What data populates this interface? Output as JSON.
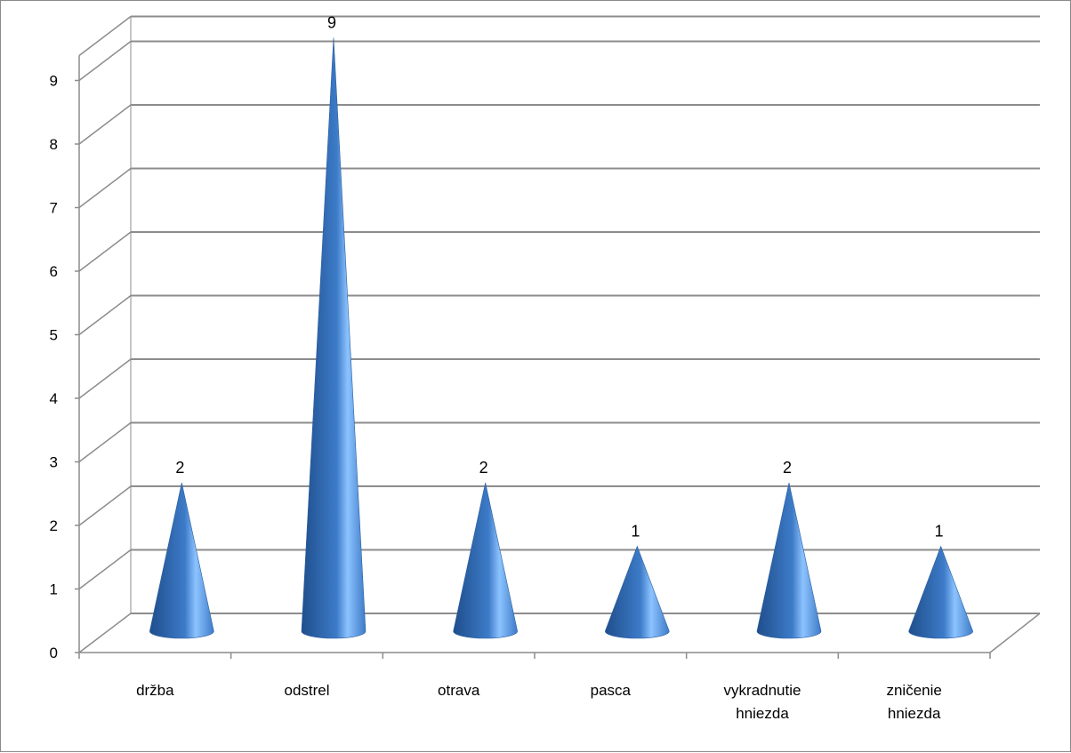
{
  "chart_data": {
    "type": "bar",
    "bar_shape": "cone",
    "categories": [
      "držba",
      "odstrel",
      "otrava",
      "pasca",
      "vykradnutie hniezda",
      "zničenie hniezda"
    ],
    "category_lines": [
      [
        "držba"
      ],
      [
        "odstrel"
      ],
      [
        "otrava"
      ],
      [
        "pasca"
      ],
      [
        "vykradnutie",
        "hniezda"
      ],
      [
        "zničenie",
        "hniezda"
      ]
    ],
    "values": [
      2,
      9,
      2,
      1,
      2,
      1
    ],
    "data_labels": [
      "2",
      "9",
      "2",
      "1",
      "2",
      "1"
    ],
    "y_ticks": [
      "0",
      "1",
      "2",
      "3",
      "4",
      "5",
      "6",
      "7",
      "8",
      "9"
    ],
    "ylim": [
      0,
      9
    ],
    "gridlines": true,
    "legend": "none",
    "colors": {
      "cone_dark": "#1f4e8c",
      "cone_mid": "#3d7bc8",
      "cone_light": "#8cc3ff",
      "grid": "#8c8c8c",
      "axis": "#8c8c8c"
    }
  }
}
